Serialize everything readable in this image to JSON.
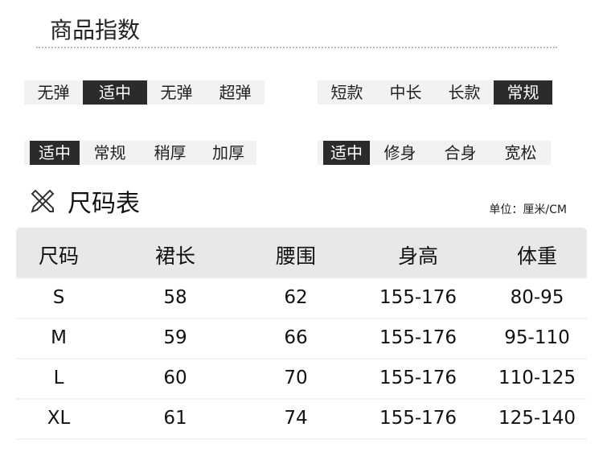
{
  "section_title": "商品指数",
  "indices": [
    {
      "options": [
        "无弹",
        "适中",
        "无弹",
        "超弹"
      ],
      "selected": 1
    },
    {
      "options": [
        "短款",
        "中长",
        "长款",
        "常规"
      ],
      "selected": 3
    },
    {
      "options": [
        "适中",
        "常规",
        "稍厚",
        "加厚"
      ],
      "selected": 0
    },
    {
      "options": [
        "适中",
        "修身",
        "合身",
        "宽松"
      ],
      "selected": 0
    }
  ],
  "size_chart": {
    "icon": "ruler-pencil-icon",
    "title": "尺码表",
    "unit": "单位：厘米/CM",
    "headers": [
      "尺码",
      "裙长",
      "腰围",
      "身高",
      "体重"
    ],
    "rows": [
      [
        "S",
        "58",
        "62",
        "155-176",
        "80-95"
      ],
      [
        "M",
        "59",
        "66",
        "155-176",
        "95-110"
      ],
      [
        "L",
        "60",
        "70",
        "155-176",
        "110-125"
      ],
      [
        "XL",
        "61",
        "74",
        "155-176",
        "125-140"
      ]
    ]
  },
  "colors": {
    "selected_bg": "#2b2b2b",
    "tag_bg": "#f2f2f2",
    "header_bg": "#e8e8e8"
  }
}
